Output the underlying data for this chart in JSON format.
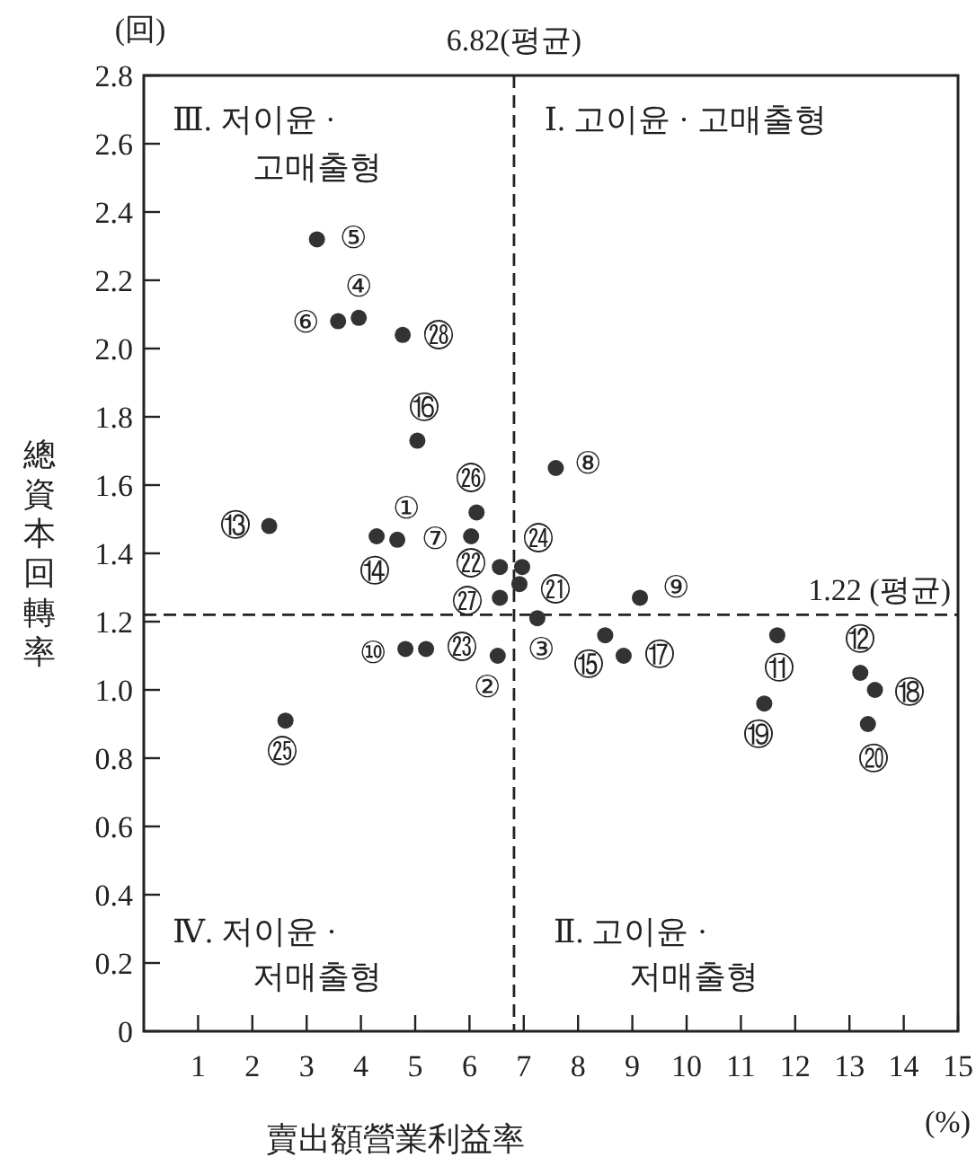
{
  "chart_data": {
    "type": "scatter",
    "xlabel": "賣出額營業利益率",
    "ylabel": "總資本回轉率",
    "x": [
      4.67,
      6.52,
      7.25,
      3.96,
      3.19,
      3.58,
      6.03,
      7.59,
      9.14,
      4.82,
      11.67,
      13.2,
      2.31,
      4.29,
      8.5,
      5.04,
      8.84,
      13.47,
      11.43,
      13.34,
      6.92,
      6.56,
      5.2,
      6.97,
      2.61,
      6.13,
      6.56,
      4.77
    ],
    "series": [
      {
        "color": "#333333",
        "values": [
          1.44,
          1.1,
          1.21,
          2.09,
          2.32,
          2.08,
          1.45,
          1.65,
          1.27,
          1.12,
          1.16,
          1.05,
          1.48,
          1.45,
          1.16,
          1.73,
          1.1,
          1.0,
          0.96,
          0.9,
          1.31,
          1.36,
          1.12,
          1.36,
          0.91,
          1.52,
          1.27,
          2.04
        ]
      }
    ],
    "xlim": [
      0,
      15
    ],
    "xticks": [
      1,
      2,
      3,
      4,
      5,
      6,
      7,
      8,
      9,
      10,
      11,
      12,
      13,
      14,
      15
    ],
    "ylim": [
      0,
      2.8
    ],
    "yticks": [
      0,
      0.2,
      0.4,
      0.6,
      0.8,
      {
        "value": 1.0,
        "label": "1.0"
      },
      1.2,
      1.4,
      1.6,
      1.8,
      {
        "value": 2.0,
        "label": "2.0"
      },
      2.2,
      2.4,
      2.6,
      2.8
    ],
    "marker": "circle",
    "ref_lines": [
      {
        "axis": "x",
        "value": 6.82,
        "label": "6.82(평균)",
        "line_style": "dashed"
      },
      {
        "axis": "y",
        "value": 1.22,
        "label": "1.22 (평균)",
        "line_style": "dashed"
      }
    ],
    "annotations": [
      "(回)",
      "(%)",
      "Ⅲ. 저이윤 ·",
      "고매출형",
      "Ⅰ. 고이윤 · 고매출형",
      "Ⅳ. 저이윤 ·",
      "저매출형",
      "Ⅱ. 고이윤 ·",
      "저매출형",
      {
        "text": "①",
        "x": 4.67,
        "y": 1.44
      },
      {
        "text": "②",
        "x": 6.52,
        "y": 1.1
      },
      {
        "text": "③",
        "x": 7.25,
        "y": 1.21
      },
      {
        "text": "④",
        "x": 3.96,
        "y": 2.09
      },
      {
        "text": "⑤",
        "x": 3.19,
        "y": 2.32
      },
      {
        "text": "⑥",
        "x": 3.58,
        "y": 2.08
      },
      {
        "text": "⑦",
        "x": 6.03,
        "y": 1.45
      },
      {
        "text": "⑧",
        "x": 7.59,
        "y": 1.65
      },
      {
        "text": "⑨",
        "x": 9.14,
        "y": 1.27
      },
      {
        "text": "⑩",
        "x": 4.82,
        "y": 1.12
      },
      {
        "text": "⑪",
        "x": 11.67,
        "y": 1.16
      },
      {
        "text": "⑫",
        "x": 13.2,
        "y": 1.05
      },
      {
        "text": "⑬",
        "x": 2.31,
        "y": 1.48
      },
      {
        "text": "⑭",
        "x": 4.29,
        "y": 1.45
      },
      {
        "text": "⑮",
        "x": 8.5,
        "y": 1.16
      },
      {
        "text": "⑯",
        "x": 5.04,
        "y": 1.73
      },
      {
        "text": "⑰",
        "x": 8.84,
        "y": 1.1
      },
      {
        "text": "⑱",
        "x": 13.47,
        "y": 1.0
      },
      {
        "text": "⑲",
        "x": 11.43,
        "y": 0.96
      },
      {
        "text": "⑳",
        "x": 13.34,
        "y": 0.9
      },
      {
        "text": "㉑",
        "x": 6.92,
        "y": 1.31
      },
      {
        "text": "㉒",
        "x": 6.56,
        "y": 1.36
      },
      {
        "text": "㉓",
        "x": 5.2,
        "y": 1.12
      },
      {
        "text": "㉔",
        "x": 6.97,
        "y": 1.36
      },
      {
        "text": "㉕",
        "x": 2.61,
        "y": 0.91
      },
      {
        "text": "㉖",
        "x": 6.13,
        "y": 1.52
      },
      {
        "text": "㉗",
        "x": 6.56,
        "y": 1.27
      },
      {
        "text": "㉘",
        "x": 4.77,
        "y": 2.04
      }
    ]
  }
}
